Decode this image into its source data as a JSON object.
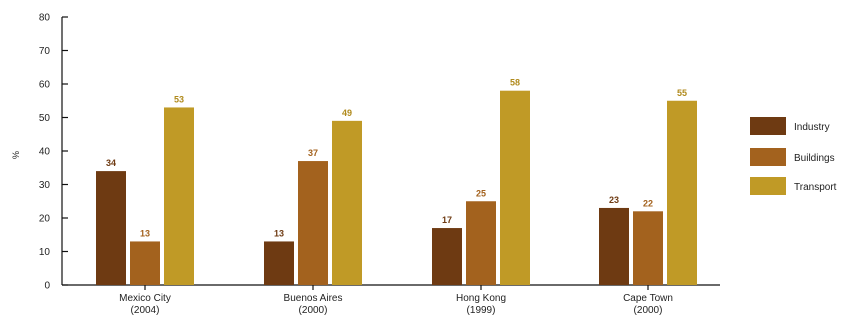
{
  "chart_data": {
    "type": "bar",
    "ylabel": "%",
    "ylim": [
      0,
      80
    ],
    "yticks": [
      0,
      10,
      20,
      30,
      40,
      50,
      60,
      70,
      80
    ],
    "grid": false,
    "legend_position": "right",
    "categories": [
      {
        "name": "Mexico City",
        "year": "(2004)"
      },
      {
        "name": "Buenos Aires",
        "year": "(2000)"
      },
      {
        "name": "Hong Kong",
        "year": "(1999)"
      },
      {
        "name": "Cape Town",
        "year": "(2000)"
      }
    ],
    "series": [
      {
        "name": "Industry",
        "color": "#6e3a12",
        "label_color": "#6e3a12",
        "values": [
          34,
          13,
          17,
          23
        ]
      },
      {
        "name": "Buildings",
        "color": "#a3621e",
        "label_color": "#a3621e",
        "values": [
          13,
          37,
          25,
          22
        ]
      },
      {
        "name": "Transport",
        "color": "#c09a26",
        "label_color": "#b08a1c",
        "values": [
          53,
          49,
          58,
          55
        ]
      }
    ]
  }
}
